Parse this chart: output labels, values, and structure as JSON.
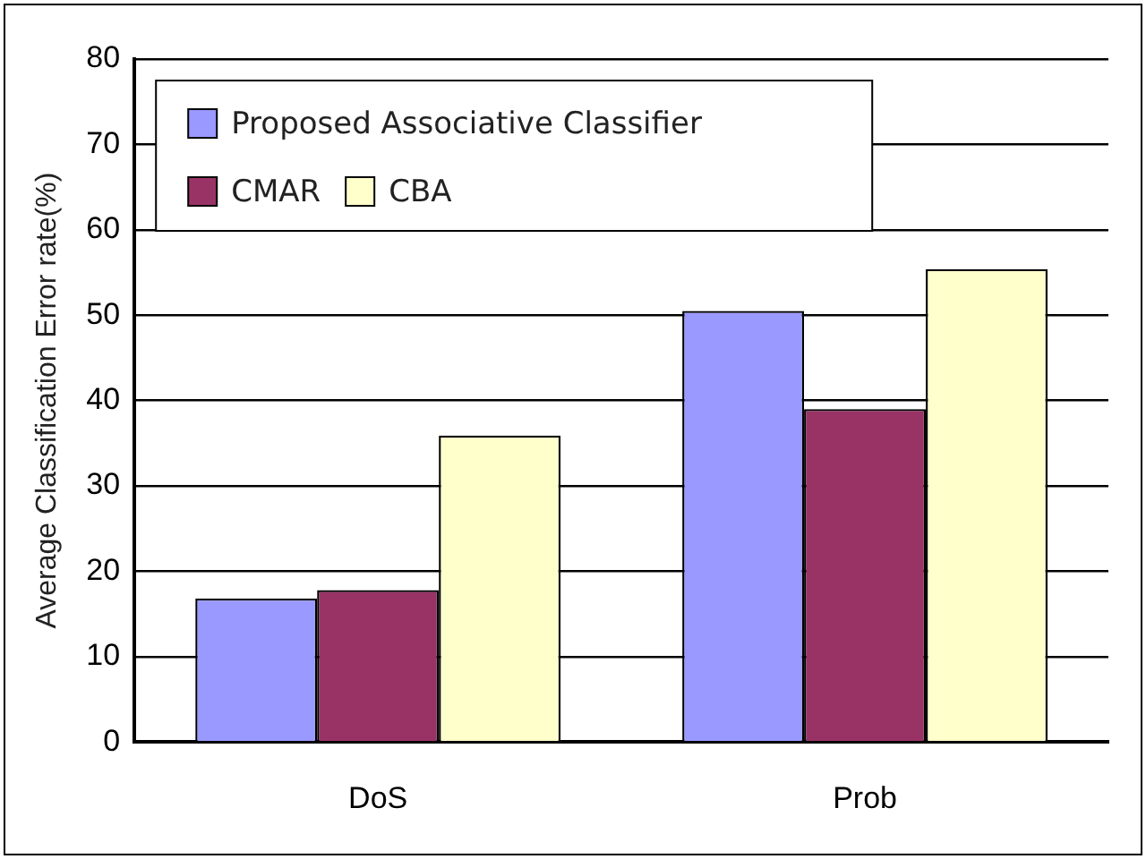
{
  "chart_data": {
    "type": "bar",
    "ylabel": "Average Classification Error rate(%)",
    "categories": [
      "DoS",
      "Prob"
    ],
    "series": [
      {
        "name": "Proposed Associative Classifier",
        "color": "#9999ff",
        "values": [
          16.8,
          50.5
        ]
      },
      {
        "name": "CMAR",
        "color": "#993366",
        "values": [
          17.8,
          39
        ]
      },
      {
        "name": "CBA",
        "color": "#ffffcc",
        "values": [
          35.9,
          55.4
        ]
      }
    ],
    "ylim": [
      0,
      80
    ],
    "yticks": [
      0,
      10,
      20,
      30,
      40,
      50,
      60,
      70,
      80
    ],
    "grid": "y",
    "legend": "top left"
  }
}
